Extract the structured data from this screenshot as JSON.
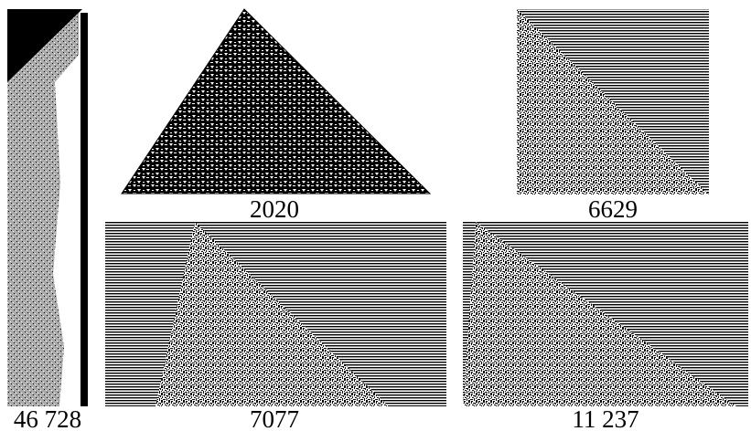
{
  "panels": [
    {
      "label": "46 728"
    },
    {
      "label": "2020"
    },
    {
      "label": "6629"
    },
    {
      "label": "7077"
    },
    {
      "label": "11 237"
    }
  ]
}
